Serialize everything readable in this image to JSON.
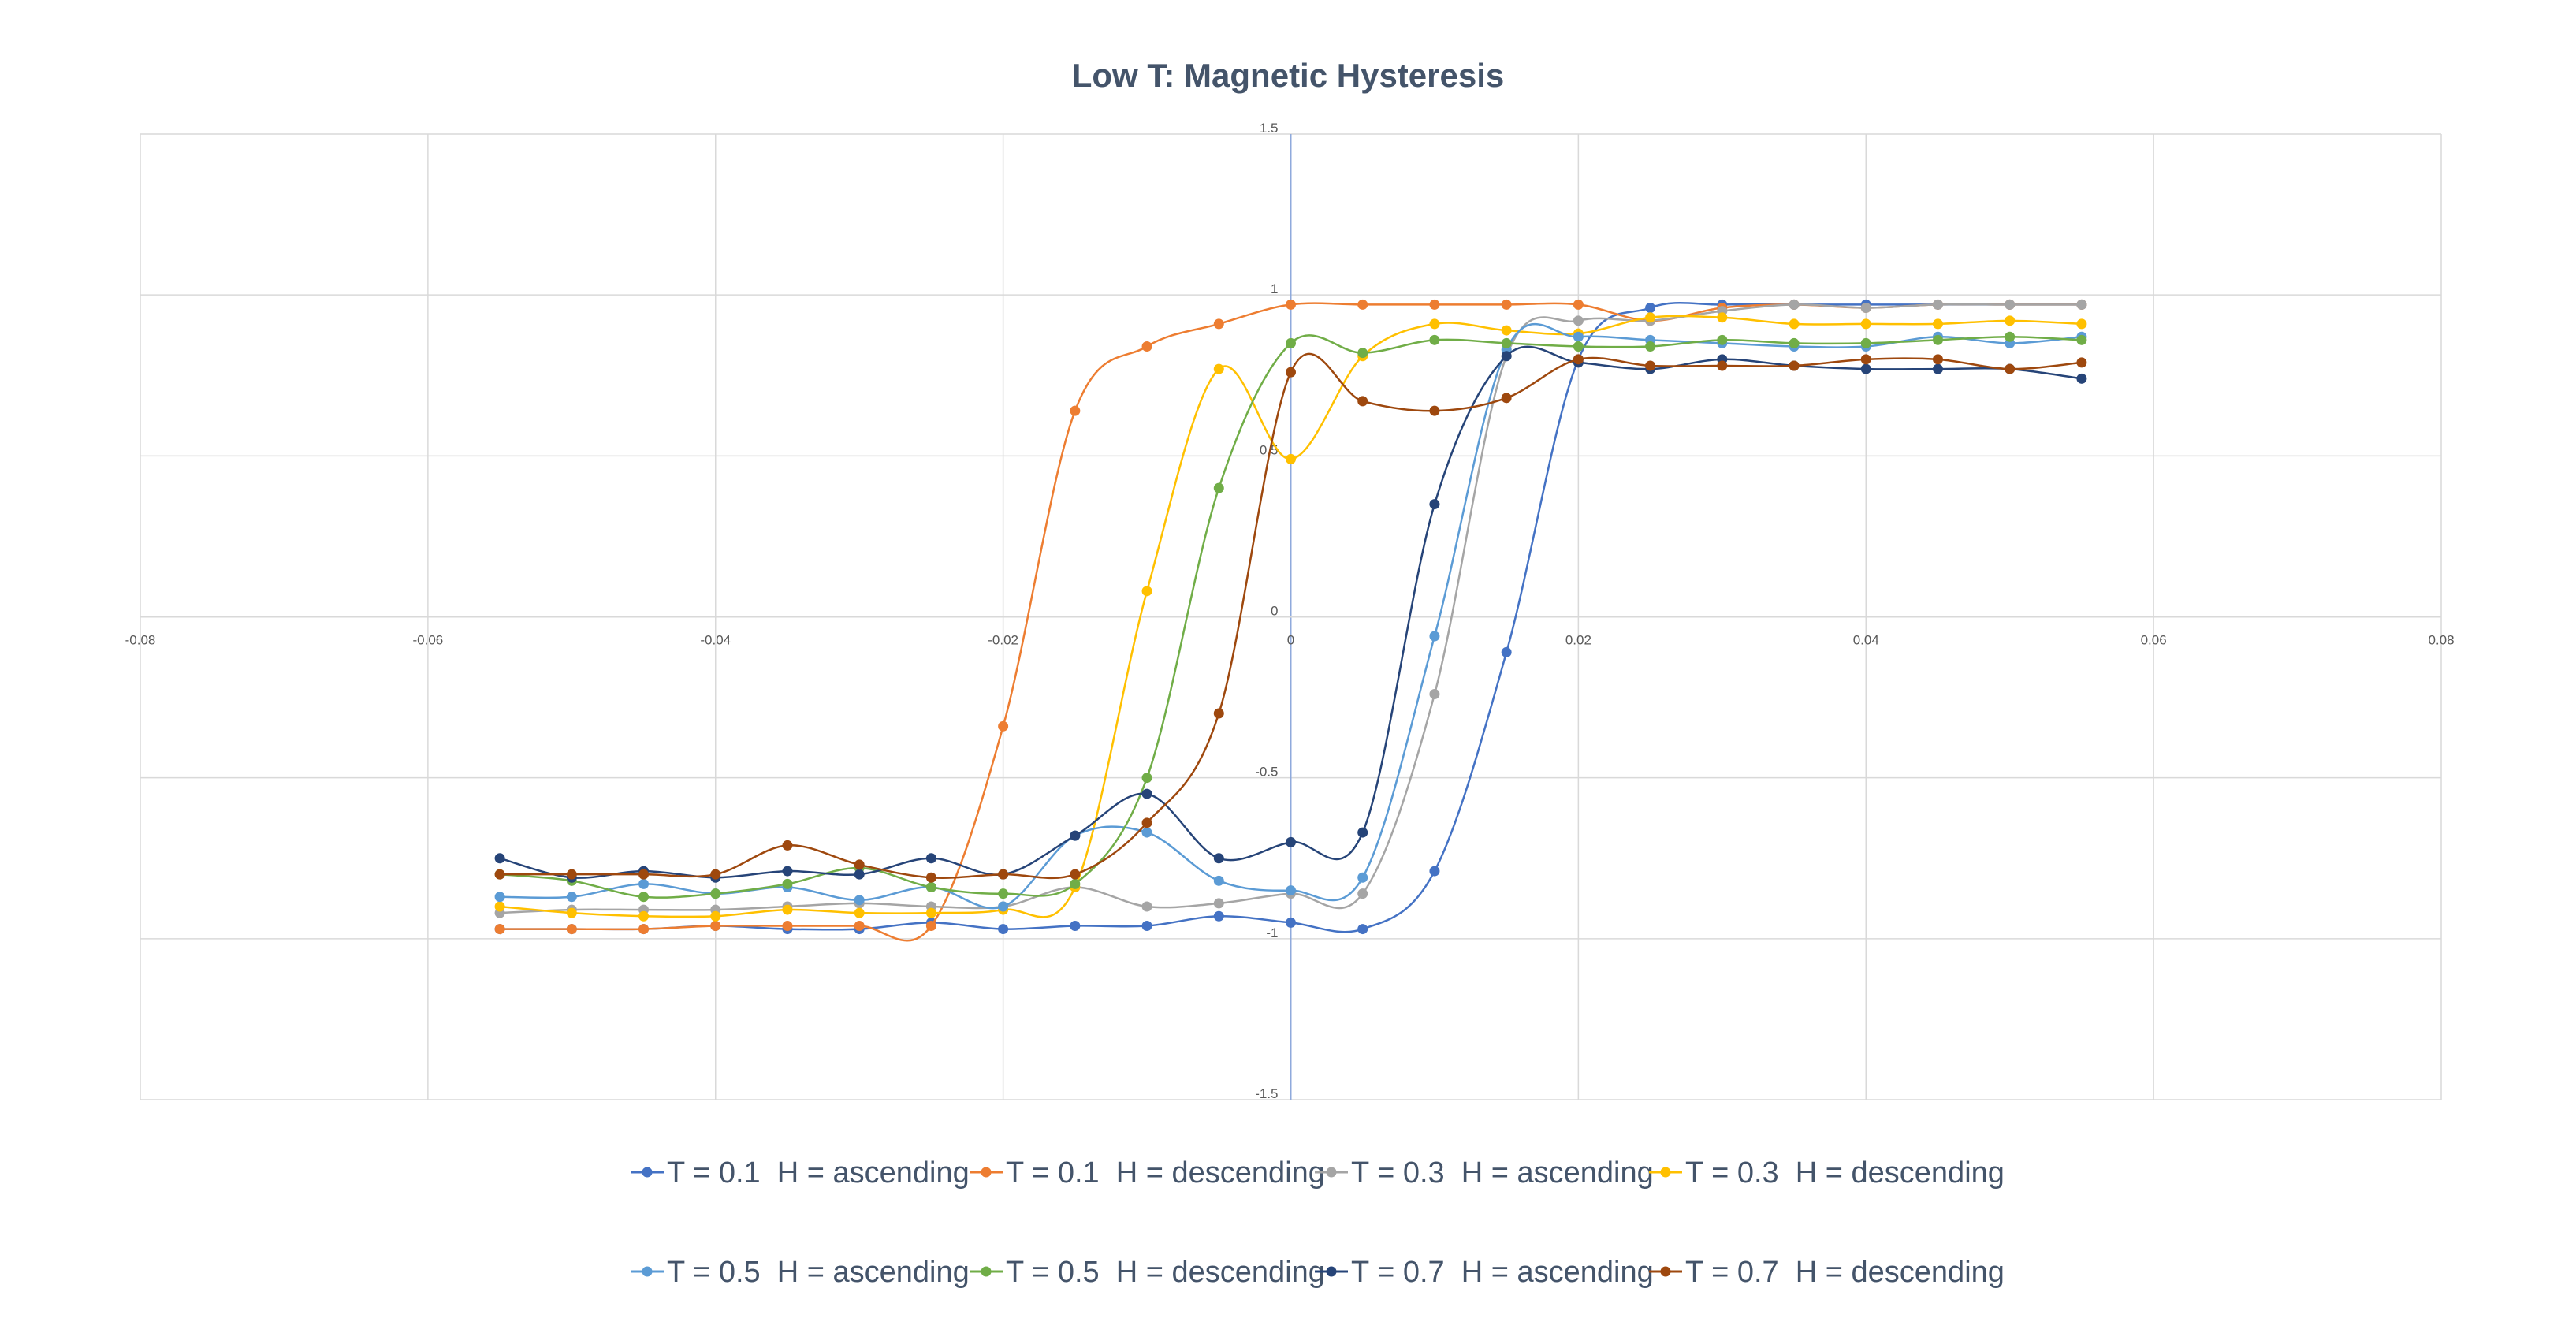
{
  "chart_data": {
    "type": "scatter",
    "title": "Low T: Magnetic Hysteresis",
    "xlabel": "",
    "ylabel": "",
    "xlim": [
      -0.08,
      0.08
    ],
    "ylim": [
      -1.5,
      1.5
    ],
    "x_ticks": [
      -0.08,
      -0.06,
      -0.04,
      -0.02,
      0,
      0.02,
      0.04,
      0.06,
      0.08
    ],
    "x_tick_labels": [
      "-0.08",
      "-0.06",
      "-0.04",
      "-0.02",
      "0",
      "0.02",
      "0.04",
      "0.06",
      "0.08"
    ],
    "y_ticks": [
      -1.5,
      -1,
      -0.5,
      0,
      0.5,
      1,
      1.5
    ],
    "y_tick_labels": [
      "-1.5",
      "-1",
      "-0.5",
      "0",
      "0.5",
      "1",
      "1.5"
    ],
    "grid": true,
    "smooth_lines": true,
    "legend_position": "bottom",
    "x": [
      -0.055,
      -0.05,
      -0.045,
      -0.04,
      -0.035,
      -0.03,
      -0.025,
      -0.02,
      -0.015,
      -0.01,
      -0.005,
      0,
      0.005,
      0.01,
      0.015,
      0.02,
      0.025,
      0.03,
      0.035,
      0.04,
      0.045,
      0.05,
      0.055
    ],
    "series": [
      {
        "name": "T = 0.1  H = ascending",
        "color": "#4472c4",
        "values": [
          -0.97,
          -0.97,
          -0.97,
          -0.96,
          -0.97,
          -0.97,
          -0.95,
          -0.97,
          -0.96,
          -0.96,
          -0.93,
          -0.95,
          -0.97,
          -0.79,
          -0.11,
          0.8,
          0.96,
          0.97,
          0.97,
          0.97,
          0.97,
          0.97,
          0.97
        ]
      },
      {
        "name": "T = 0.1  H = descending",
        "color": "#ed7d31",
        "values": [
          -0.97,
          -0.97,
          -0.97,
          -0.96,
          -0.96,
          -0.96,
          -0.96,
          -0.34,
          0.64,
          0.84,
          0.91,
          0.97,
          0.97,
          0.97,
          0.97,
          0.97,
          0.92,
          0.96,
          0.97,
          0.96,
          0.97,
          0.97,
          0.97
        ]
      },
      {
        "name": "T = 0.3  H = ascending",
        "color": "#a5a5a5",
        "values": [
          -0.92,
          -0.91,
          -0.91,
          -0.91,
          -0.9,
          -0.89,
          -0.9,
          -0.9,
          -0.84,
          -0.9,
          -0.89,
          -0.86,
          -0.86,
          -0.24,
          0.81,
          0.92,
          0.92,
          0.95,
          0.97,
          0.96,
          0.97,
          0.97,
          0.97
        ]
      },
      {
        "name": "T = 0.3  H = descending",
        "color": "#ffc000",
        "values": [
          -0.9,
          -0.92,
          -0.93,
          -0.93,
          -0.91,
          -0.92,
          -0.92,
          -0.91,
          -0.84,
          0.08,
          0.77,
          0.49,
          0.81,
          0.91,
          0.89,
          0.88,
          0.93,
          0.93,
          0.91,
          0.91,
          0.91,
          0.92,
          0.91
        ]
      },
      {
        "name": "T = 0.5  H = ascending",
        "color": "#5b9bd5",
        "values": [
          -0.87,
          -0.87,
          -0.83,
          -0.86,
          -0.84,
          -0.88,
          -0.84,
          -0.9,
          -0.68,
          -0.67,
          -0.82,
          -0.85,
          -0.81,
          -0.06,
          0.83,
          0.87,
          0.86,
          0.85,
          0.84,
          0.84,
          0.87,
          0.85,
          0.87
        ]
      },
      {
        "name": "T = 0.5  H = descending",
        "color": "#70ad47",
        "values": [
          -0.8,
          -0.82,
          -0.87,
          -0.86,
          -0.83,
          -0.78,
          -0.84,
          -0.86,
          -0.83,
          -0.5,
          0.4,
          0.85,
          0.82,
          0.86,
          0.85,
          0.84,
          0.84,
          0.86,
          0.85,
          0.85,
          0.86,
          0.87,
          0.86
        ]
      },
      {
        "name": "T = 0.7  H = ascending",
        "color": "#264478",
        "values": [
          -0.75,
          -0.81,
          -0.79,
          -0.81,
          -0.79,
          -0.8,
          -0.75,
          -0.8,
          -0.68,
          -0.55,
          -0.75,
          -0.7,
          -0.67,
          0.35,
          0.81,
          0.79,
          0.77,
          0.8,
          0.78,
          0.77,
          0.77,
          0.77,
          0.74
        ]
      },
      {
        "name": "T = 0.7  H = descending",
        "color": "#9e480e",
        "values": [
          -0.8,
          -0.8,
          -0.8,
          -0.8,
          -0.71,
          -0.77,
          -0.81,
          -0.8,
          -0.8,
          -0.64,
          -0.3,
          0.76,
          0.67,
          0.64,
          0.68,
          0.8,
          0.78,
          0.78,
          0.78,
          0.8,
          0.8,
          0.77,
          0.79
        ]
      }
    ]
  },
  "colors": {
    "background": "#ffffff",
    "gridline": "#d9d9d9",
    "axis_line": "#8faadc",
    "title_text": "#44546a",
    "tick_text": "#595959",
    "legend_text": "#44546a"
  }
}
